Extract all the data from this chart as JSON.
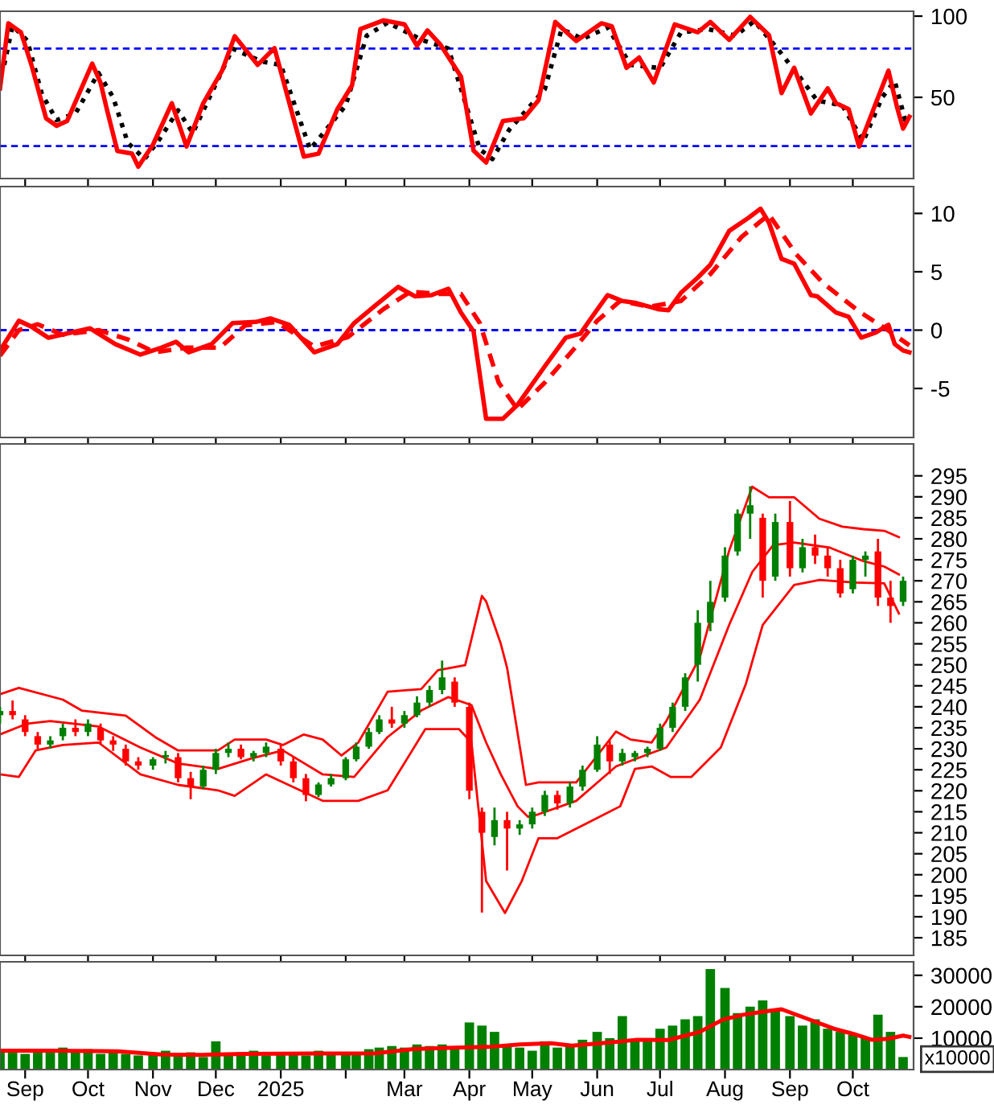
{
  "chart_data": [
    {
      "type": "line",
      "xlim": [
        "2024-08-20",
        "2025-10-30"
      ],
      "ylim": [
        0,
        103
      ],
      "yticks": [
        50,
        100
      ],
      "tick_labels": "y",
      "grid": false,
      "xticks": [
        {
          "value": "2024-09-01",
          "label": null
        },
        {
          "value": "2024-10-01",
          "label": null
        },
        {
          "value": "2024-11-01",
          "label": null
        },
        {
          "value": "2024-12-01",
          "label": null
        },
        {
          "value": "2025-01-01",
          "label": null
        },
        {
          "value": "2025-02-01",
          "label": null
        },
        {
          "value": "2025-03-01",
          "label": null
        },
        {
          "value": "2025-04-01",
          "label": null
        },
        {
          "value": "2025-05-01",
          "label": null
        },
        {
          "value": "2025-06-01",
          "label": null
        },
        {
          "value": "2025-07-01",
          "label": null
        },
        {
          "value": "2025-08-01",
          "label": null
        },
        {
          "value": "2025-09-01",
          "label": null
        },
        {
          "value": "2025-10-01",
          "label": null
        }
      ],
      "ref_lines": [
        {
          "axis": "y",
          "value": 80,
          "color": "#0000ff",
          "line_style": "dashed"
        },
        {
          "axis": "y",
          "value": 20,
          "color": "#0000ff",
          "line_style": "dashed"
        }
      ],
      "series": [
        {
          "color": "#000000",
          "line_style": "dotted",
          "x": [
            "2024-08-22",
            "2024-08-26",
            "2024-09-02",
            "2024-09-09",
            "2024-09-16",
            "2024-09-25",
            "2024-10-06",
            "2024-10-13",
            "2024-10-20",
            "2024-10-28",
            "2024-11-04",
            "2024-11-13",
            "2024-11-20",
            "2024-11-28",
            "2024-12-09",
            "2024-12-23",
            "2025-01-01",
            "2025-01-15",
            "2025-02-01",
            "2025-02-11",
            "2025-02-21",
            "2025-03-10",
            "2025-03-22",
            "2025-04-06",
            "2025-04-12",
            "2025-04-20",
            "2025-05-07",
            "2025-05-15",
            "2025-05-25",
            "2025-06-06",
            "2025-06-17",
            "2025-07-01",
            "2025-07-11",
            "2025-07-24",
            "2025-08-06",
            "2025-08-15",
            "2025-08-26",
            "2025-09-06",
            "2025-09-14",
            "2025-09-26",
            "2025-10-06",
            "2025-10-15",
            "2025-10-21",
            "2025-10-26",
            "2025-10-28"
          ],
          "values": [
            70,
            94,
            85,
            52,
            36,
            40,
            65,
            50,
            22,
            12,
            24,
            42,
            28,
            50,
            80,
            72,
            70,
            18,
            45,
            88,
            96,
            85,
            80,
            18,
            12,
            30,
            55,
            92,
            86,
            93,
            70,
            68,
            90,
            92,
            88,
            97,
            80,
            62,
            48,
            45,
            23,
            50,
            60,
            36,
            36
          ]
        },
        {
          "color": "#ff0000",
          "line_style": "solid",
          "x": [
            "2024-08-20",
            "2024-08-24",
            "2024-08-30",
            "2024-09-04",
            "2024-09-11",
            "2024-09-16",
            "2024-09-21",
            "2024-10-03",
            "2024-10-07",
            "2024-10-10",
            "2024-10-15",
            "2024-10-22",
            "2024-10-25",
            "2024-11-01",
            "2024-11-10",
            "2024-11-17",
            "2024-11-25",
            "2024-12-04",
            "2024-12-10",
            "2024-12-21",
            "2024-12-29",
            "2025-01-12",
            "2025-01-19",
            "2025-01-28",
            "2025-02-04",
            "2025-02-08",
            "2025-02-19",
            "2025-03-01",
            "2025-03-07",
            "2025-03-12",
            "2025-03-18",
            "2025-03-28",
            "2025-04-03",
            "2025-04-09",
            "2025-04-17",
            "2025-04-27",
            "2025-05-04",
            "2025-05-12",
            "2025-05-22",
            "2025-06-03",
            "2025-06-08",
            "2025-06-15",
            "2025-06-21",
            "2025-06-28",
            "2025-07-08",
            "2025-07-19",
            "2025-07-25",
            "2025-08-03",
            "2025-08-13",
            "2025-08-22",
            "2025-08-28",
            "2025-09-03",
            "2025-09-11",
            "2025-09-19",
            "2025-09-23",
            "2025-09-29",
            "2025-10-04",
            "2025-10-12",
            "2025-10-18",
            "2025-10-22",
            "2025-10-25",
            "2025-10-28"
          ],
          "values": [
            55.5,
            95.6,
            90,
            70,
            37,
            32.5,
            35.4,
            70.8,
            59,
            42.7,
            17,
            15.3,
            7.3,
            20.8,
            46.4,
            19.7,
            46.4,
            66.4,
            87.6,
            70,
            80.3,
            13.5,
            15.3,
            42.7,
            57.3,
            92,
            97.4,
            95,
            81.8,
            91.2,
            82.8,
            62.8,
            17.2,
            9.9,
            35.4,
            37.2,
            48.2,
            96.4,
            84.7,
            95.6,
            93.8,
            68.2,
            74.5,
            59.1,
            94.9,
            90.1,
            96.4,
            85.4,
            99.5,
            88.3,
            52.6,
            68.2,
            40.1,
            55.5,
            46.4,
            42.7,
            19.7,
            46.4,
            66.4,
            44.5,
            30.7,
            38
          ]
        }
      ]
    },
    {
      "type": "line",
      "xlim": [
        "2024-08-20",
        "2025-10-30"
      ],
      "ylim": [
        -9.2,
        12.3
      ],
      "yticks": [
        -5,
        0,
        5,
        10
      ],
      "tick_labels": "y",
      "grid": false,
      "xticks": [
        {
          "value": "2024-09-01",
          "label": null
        },
        {
          "value": "2024-10-01",
          "label": null
        },
        {
          "value": "2024-11-01",
          "label": null
        },
        {
          "value": "2024-12-01",
          "label": null
        },
        {
          "value": "2025-01-01",
          "label": null
        },
        {
          "value": "2025-02-01",
          "label": null
        },
        {
          "value": "2025-03-01",
          "label": null
        },
        {
          "value": "2025-04-01",
          "label": null
        },
        {
          "value": "2025-05-01",
          "label": null
        },
        {
          "value": "2025-06-01",
          "label": null
        },
        {
          "value": "2025-07-01",
          "label": null
        },
        {
          "value": "2025-08-01",
          "label": null
        },
        {
          "value": "2025-09-01",
          "label": null
        },
        {
          "value": "2025-10-01",
          "label": null
        }
      ],
      "ref_lines": [
        {
          "axis": "y",
          "value": 0,
          "color": "#0000ff",
          "line_style": "dashed"
        }
      ],
      "series": [
        {
          "color": "#ff0000",
          "line_style": "dashed",
          "x": [
            "2024-08-20",
            "2024-08-29",
            "2024-09-07",
            "2024-09-19",
            "2024-10-06",
            "2024-10-20",
            "2024-11-02",
            "2024-11-17",
            "2024-12-03",
            "2024-12-15",
            "2024-12-30",
            "2025-01-17",
            "2025-02-02",
            "2025-02-19",
            "2025-03-04",
            "2025-03-17",
            "2025-03-28",
            "2025-04-06",
            "2025-04-15",
            "2025-04-24",
            "2025-05-07",
            "2025-05-21",
            "2025-06-01",
            "2025-06-12",
            "2025-06-26",
            "2025-07-11",
            "2025-07-25",
            "2025-08-09",
            "2025-08-22",
            "2025-09-04",
            "2025-09-17",
            "2025-10-04",
            "2025-10-16",
            "2025-10-28"
          ],
          "values": [
            -2.2,
            0,
            0.5,
            -0.4,
            0,
            -0.8,
            -1.9,
            -1.5,
            -1.5,
            0.4,
            0.7,
            -1.4,
            -0.6,
            1.8,
            3.3,
            3.1,
            3.1,
            0.6,
            -4.5,
            -6.8,
            -4.5,
            -1.6,
            0.8,
            2.5,
            2.0,
            2.5,
            4.8,
            8,
            9.9,
            6.5,
            4,
            1.6,
            0.2,
            -1.3
          ]
        },
        {
          "color": "#ff0000",
          "line_style": "solid",
          "x": [
            "2024-08-20",
            "2024-08-29",
            "2024-09-04",
            "2024-09-12",
            "2024-10-02",
            "2024-10-14",
            "2024-10-26",
            "2024-11-05",
            "2024-11-12",
            "2024-11-18",
            "2024-11-29",
            "2024-12-09",
            "2024-12-20",
            "2024-12-27",
            "2025-01-05",
            "2025-01-17",
            "2025-01-28",
            "2025-02-05",
            "2025-02-15",
            "2025-02-26",
            "2025-03-06",
            "2025-03-14",
            "2025-03-22",
            "2025-03-28",
            "2025-04-03",
            "2025-04-09",
            "2025-04-17",
            "2025-04-24",
            "2025-05-07",
            "2025-05-17",
            "2025-05-24",
            "2025-05-29",
            "2025-06-06",
            "2025-06-13",
            "2025-06-19",
            "2025-06-30",
            "2025-07-05",
            "2025-07-11",
            "2025-07-19",
            "2025-07-25",
            "2025-08-03",
            "2025-08-12",
            "2025-08-18",
            "2025-08-22",
            "2025-08-28",
            "2025-09-03",
            "2025-09-11",
            "2025-09-14",
            "2025-09-23",
            "2025-09-29",
            "2025-10-05",
            "2025-10-12",
            "2025-10-18",
            "2025-10-21",
            "2025-10-25",
            "2025-10-28"
          ],
          "values": [
            -1.75,
            0.8,
            0.3,
            -0.65,
            0.15,
            -1.2,
            -2.1,
            -1.5,
            -1.0,
            -1.9,
            -1.2,
            0.6,
            0.7,
            1.0,
            0.45,
            -1.9,
            -1.2,
            0.6,
            2.1,
            3.7,
            2.9,
            3.0,
            3.55,
            1.5,
            -0.1,
            -7.6,
            -7.6,
            -6.4,
            -3.1,
            -0.65,
            -0.3,
            1.0,
            3.0,
            2.5,
            2.35,
            1.8,
            1.7,
            3.2,
            4.5,
            5.6,
            8.5,
            9.6,
            10.4,
            9.2,
            6.1,
            5.7,
            3.0,
            2.9,
            1.5,
            1.15,
            -0.65,
            -0.2,
            0.45,
            -1.2,
            -1.75,
            -1.9
          ]
        }
      ]
    },
    {
      "type": "candlestick",
      "xlim": [
        "2024-08-20",
        "2025-10-30"
      ],
      "ylim": [
        180.8,
        302.6
      ],
      "yticks": [
        185,
        190,
        195,
        200,
        205,
        210,
        215,
        220,
        225,
        230,
        235,
        240,
        245,
        250,
        255,
        260,
        265,
        270,
        275,
        280,
        285,
        290,
        295
      ],
      "tick_labels": "y",
      "grid": false,
      "xticks": [
        {
          "value": "2024-09-01",
          "label": null
        },
        {
          "value": "2024-10-01",
          "label": null
        },
        {
          "value": "2024-11-01",
          "label": null
        },
        {
          "value": "2024-12-01",
          "label": null
        },
        {
          "value": "2025-01-01",
          "label": null
        },
        {
          "value": "2025-02-01",
          "label": null
        },
        {
          "value": "2025-03-01",
          "label": null
        },
        {
          "value": "2025-04-01",
          "label": null
        },
        {
          "value": "2025-05-01",
          "label": null
        },
        {
          "value": "2025-06-01",
          "label": null
        },
        {
          "value": "2025-07-01",
          "label": null
        },
        {
          "value": "2025-08-01",
          "label": null
        },
        {
          "value": "2025-09-01",
          "label": null
        },
        {
          "value": "2025-10-01",
          "label": null
        }
      ],
      "x": [
        "2024-08-20",
        "2024-08-26",
        "2024-09-01",
        "2024-09-07",
        "2024-09-13",
        "2024-09-19",
        "2024-09-25",
        "2024-10-01",
        "2024-10-07",
        "2024-10-13",
        "2024-10-19",
        "2024-10-25",
        "2024-11-01",
        "2024-11-07",
        "2024-11-13",
        "2024-11-19",
        "2024-11-25",
        "2024-12-01",
        "2024-12-07",
        "2024-12-13",
        "2024-12-19",
        "2024-12-25",
        "2025-01-01",
        "2025-01-07",
        "2025-01-13",
        "2025-01-19",
        "2025-01-25",
        "2025-02-01",
        "2025-02-06",
        "2025-02-12",
        "2025-02-17",
        "2025-02-23",
        "2025-03-01",
        "2025-03-07",
        "2025-03-13",
        "2025-03-19",
        "2025-03-25",
        "2025-04-01",
        "2025-04-07",
        "2025-04-13",
        "2025-04-19",
        "2025-04-25",
        "2025-05-01",
        "2025-05-07",
        "2025-05-13",
        "2025-05-19",
        "2025-05-25",
        "2025-06-01",
        "2025-06-07",
        "2025-06-13",
        "2025-06-19",
        "2025-06-25",
        "2025-07-01",
        "2025-07-07",
        "2025-07-13",
        "2025-07-19",
        "2025-07-25",
        "2025-08-01",
        "2025-08-07",
        "2025-08-13",
        "2025-08-19",
        "2025-08-25",
        "2025-09-01",
        "2025-09-07",
        "2025-09-13",
        "2025-09-19",
        "2025-09-25",
        "2025-10-01",
        "2025-10-07",
        "2025-10-13",
        "2025-10-19",
        "2025-10-25"
      ],
      "ohlc": [
        [
          238,
          240,
          236,
          239
        ],
        [
          239,
          241.5,
          237,
          238
        ],
        [
          237,
          238,
          233,
          234
        ],
        [
          233,
          234,
          230,
          231
        ],
        [
          231,
          233,
          230,
          232
        ],
        [
          233,
          236,
          232,
          235
        ],
        [
          235,
          237,
          233,
          234
        ],
        [
          234,
          237,
          233,
          236
        ],
        [
          235,
          236,
          231,
          232
        ],
        [
          232,
          233,
          229.5,
          231
        ],
        [
          230,
          231,
          226,
          227
        ],
        [
          227,
          228,
          225,
          226
        ],
        [
          226,
          228,
          225,
          227.5
        ],
        [
          228,
          229.5,
          226.5,
          228.5
        ],
        [
          228,
          229,
          222,
          223
        ],
        [
          223,
          224.5,
          218,
          221
        ],
        [
          221,
          226,
          220.5,
          225
        ],
        [
          225,
          230,
          224,
          229
        ],
        [
          229,
          231.5,
          228,
          230
        ],
        [
          230,
          231,
          227.5,
          228
        ],
        [
          228,
          229.5,
          227,
          229
        ],
        [
          229,
          231.5,
          228,
          230.5
        ],
        [
          230,
          231,
          226,
          227
        ],
        [
          227,
          228,
          222,
          223
        ],
        [
          223,
          224,
          217.5,
          219
        ],
        [
          219,
          222,
          218.5,
          221.5
        ],
        [
          221.5,
          224,
          221,
          223
        ],
        [
          223,
          228,
          222.5,
          227.5
        ],
        [
          227.5,
          231.5,
          227,
          230.5
        ],
        [
          230.5,
          235,
          230,
          234
        ],
        [
          234,
          238,
          233.5,
          237
        ],
        [
          237,
          240,
          235,
          236
        ],
        [
          236,
          239,
          235,
          238
        ],
        [
          238,
          242.5,
          237.5,
          241
        ],
        [
          241,
          245,
          240,
          244
        ],
        [
          244,
          251,
          243,
          247
        ],
        [
          246,
          247,
          240,
          241
        ],
        [
          240,
          241,
          218,
          220
        ],
        [
          215,
          216,
          191,
          210
        ],
        [
          209,
          216,
          207,
          213
        ],
        [
          213,
          215,
          201,
          211
        ],
        [
          211,
          213,
          209.5,
          212
        ],
        [
          212,
          216,
          211,
          215
        ],
        [
          215,
          220,
          214,
          219
        ],
        [
          219,
          220,
          215.5,
          217
        ],
        [
          217,
          222,
          216,
          221
        ],
        [
          221,
          226,
          220,
          225
        ],
        [
          225,
          233,
          224.5,
          231
        ],
        [
          231,
          232,
          224,
          227
        ],
        [
          227,
          230,
          226,
          229
        ],
        [
          228,
          229.5,
          227,
          229
        ],
        [
          229,
          230.5,
          228,
          230
        ],
        [
          230,
          236,
          229.5,
          235
        ],
        [
          235,
          241,
          234,
          240
        ],
        [
          240,
          248,
          239,
          247
        ],
        [
          250,
          263,
          246,
          260
        ],
        [
          260,
          270,
          258,
          265
        ],
        [
          266,
          278,
          265,
          276
        ],
        [
          277,
          287,
          276,
          286
        ],
        [
          286,
          292.5,
          280,
          288
        ],
        [
          285,
          286,
          266,
          270
        ],
        [
          271,
          286,
          270,
          284
        ],
        [
          284,
          289,
          271,
          273
        ],
        [
          273,
          280,
          272,
          278
        ],
        [
          278,
          281,
          274,
          276
        ],
        [
          276,
          278,
          271,
          273
        ],
        [
          273,
          275,
          266,
          267
        ],
        [
          268,
          276,
          267,
          275
        ],
        [
          275,
          277,
          271,
          276
        ],
        [
          277,
          280,
          264,
          266
        ],
        [
          266,
          270,
          260,
          264
        ],
        [
          265,
          271,
          264,
          270
        ]
      ],
      "colors": [
        "#008000",
        "#ff0000",
        "#ff0000",
        "#ff0000",
        "#008000",
        "#008000",
        "#ff0000",
        "#008000",
        "#ff0000",
        "#ff0000",
        "#ff0000",
        "#ff0000",
        "#008000",
        "#008000",
        "#ff0000",
        "#ff0000",
        "#008000",
        "#008000",
        "#008000",
        "#ff0000",
        "#008000",
        "#008000",
        "#ff0000",
        "#ff0000",
        "#ff0000",
        "#008000",
        "#008000",
        "#008000",
        "#008000",
        "#008000",
        "#008000",
        "#ff0000",
        "#008000",
        "#008000",
        "#008000",
        "#008000",
        "#ff0000",
        "#ff0000",
        "#ff0000",
        "#008000",
        "#ff0000",
        "#008000",
        "#008000",
        "#008000",
        "#ff0000",
        "#008000",
        "#008000",
        "#008000",
        "#ff0000",
        "#008000",
        "#008000",
        "#008000",
        "#008000",
        "#008000",
        "#008000",
        "#008000",
        "#008000",
        "#008000",
        "#008000",
        "#008000",
        "#ff0000",
        "#008000",
        "#ff0000",
        "#008000",
        "#ff0000",
        "#ff0000",
        "#ff0000",
        "#008000",
        "#008000",
        "#ff0000",
        "#ff0000",
        "#008000"
      ],
      "series": [
        {
          "type": "line",
          "color": "#ff0000",
          "line_style": "solid",
          "x": [
            "2024-08-20",
            "2024-08-29",
            "2024-09-19",
            "2024-09-28",
            "2024-10-19",
            "2024-11-02",
            "2024-11-13",
            "2024-12-02",
            "2024-12-10",
            "2024-12-25",
            "2025-01-02",
            "2025-01-12",
            "2025-01-21",
            "2025-01-30",
            "2025-02-07",
            "2025-02-21",
            "2025-03-09",
            "2025-03-17",
            "2025-03-30",
            "2025-04-07",
            "2025-04-09",
            "2025-04-16",
            "2025-04-19",
            "2025-04-28",
            "2025-05-04",
            "2025-05-22",
            "2025-06-10",
            "2025-06-17",
            "2025-06-27",
            "2025-07-04",
            "2025-07-20",
            "2025-08-03",
            "2025-08-14",
            "2025-08-22",
            "2025-09-03",
            "2025-09-15",
            "2025-09-26",
            "2025-10-06",
            "2025-10-16",
            "2025-10-23"
          ],
          "values": [
            243,
            244.5,
            241.7,
            239.1,
            237.9,
            232.8,
            229.6,
            229.6,
            232.2,
            232.2,
            230.9,
            233.4,
            232.2,
            228.4,
            231.5,
            243.6,
            244.2,
            248.7,
            249.9,
            266.4,
            265.1,
            255,
            249.3,
            221.4,
            222,
            222,
            234.1,
            232.2,
            231.5,
            236.6,
            251.8,
            277.2,
            292.4,
            289.9,
            289.9,
            284.8,
            282.9,
            282.3,
            281.9,
            280.4
          ]
        },
        {
          "type": "line",
          "color": "#ff0000",
          "line_style": "solid",
          "x": [
            "2024-08-20",
            "2024-09-02",
            "2024-09-13",
            "2024-10-06",
            "2024-10-26",
            "2024-11-13",
            "2024-12-02",
            "2024-12-18",
            "2025-01-02",
            "2025-01-21",
            "2025-02-05",
            "2025-02-21",
            "2025-03-09",
            "2025-03-22",
            "2025-04-02",
            "2025-04-09",
            "2025-04-16",
            "2025-04-24",
            "2025-04-29",
            "2025-05-04",
            "2025-05-22",
            "2025-06-10",
            "2025-06-27",
            "2025-07-04",
            "2025-07-20",
            "2025-08-03",
            "2025-08-14",
            "2025-08-24",
            "2025-09-03",
            "2025-09-20",
            "2025-10-06",
            "2025-10-16",
            "2025-10-23"
          ],
          "values": [
            233.4,
            236,
            236.6,
            235.3,
            230.3,
            226.5,
            225.2,
            227.7,
            229.6,
            223.9,
            223.3,
            232.8,
            239.1,
            242.3,
            240.4,
            231.5,
            223.9,
            216.3,
            213.8,
            214.4,
            217.6,
            225.8,
            229,
            230.3,
            241.7,
            259.5,
            272.1,
            278.5,
            279.1,
            277.9,
            274.7,
            273.4,
            271.5
          ]
        },
        {
          "type": "line",
          "color": "#ff0000",
          "line_style": "solid",
          "x": [
            "2024-08-20",
            "2024-08-29",
            "2024-09-06",
            "2024-09-19",
            "2024-10-06",
            "2024-10-26",
            "2024-11-13",
            "2024-12-02",
            "2024-12-10",
            "2024-12-25",
            "2025-01-21",
            "2025-02-07",
            "2025-02-21",
            "2025-03-11",
            "2025-03-27",
            "2025-04-02",
            "2025-04-09",
            "2025-04-18",
            "2025-04-26",
            "2025-05-04",
            "2025-05-13",
            "2025-05-28",
            "2025-06-12",
            "2025-06-19",
            "2025-06-27",
            "2025-07-06",
            "2025-07-16",
            "2025-07-30",
            "2025-08-11",
            "2025-08-19",
            "2025-09-03",
            "2025-09-15",
            "2025-10-02",
            "2025-10-16",
            "2025-10-23"
          ],
          "values": [
            223.9,
            223.3,
            229.6,
            230.9,
            231.5,
            223.9,
            221.4,
            220.1,
            218.8,
            223.9,
            217.6,
            217.6,
            220.1,
            234.7,
            234.7,
            231.5,
            198.5,
            190.9,
            198.5,
            208.7,
            208.7,
            212.5,
            216.3,
            225.2,
            225.8,
            223.3,
            223.3,
            230.3,
            245.5,
            259.5,
            269,
            270.2,
            269.6,
            269.4,
            262.2
          ]
        }
      ]
    },
    {
      "type": "bar",
      "xlim": [
        "2024-08-20",
        "2025-10-30"
      ],
      "ylim": [
        0,
        34300
      ],
      "yticks": [
        10000,
        20000,
        30000
      ],
      "grid": false,
      "ylabel": "x10000",
      "xticks": [
        {
          "value": "2024-09-01",
          "label": "Sep"
        },
        {
          "value": "2024-10-01",
          "label": "Oct"
        },
        {
          "value": "2024-11-01",
          "label": "Nov"
        },
        {
          "value": "2024-12-01",
          "label": "Dec"
        },
        {
          "value": "2025-01-01",
          "label": "2025"
        },
        {
          "value": "2025-02-01",
          "label": null
        },
        {
          "value": "2025-03-01",
          "label": "Mar"
        },
        {
          "value": "2025-04-01",
          "label": "Apr"
        },
        {
          "value": "2025-05-01",
          "label": "May"
        },
        {
          "value": "2025-06-01",
          "label": "Jun"
        },
        {
          "value": "2025-07-01",
          "label": "Jul"
        },
        {
          "value": "2025-08-01",
          "label": "Aug"
        },
        {
          "value": "2025-09-01",
          "label": "Sep"
        },
        {
          "value": "2025-10-01",
          "label": "Oct"
        }
      ],
      "series": [
        {
          "type": "bar",
          "color": "#008000",
          "x": [
            "2024-08-20",
            "2024-08-26",
            "2024-09-01",
            "2024-09-07",
            "2024-09-13",
            "2024-09-19",
            "2024-09-25",
            "2024-10-01",
            "2024-10-07",
            "2024-10-13",
            "2024-10-19",
            "2024-10-25",
            "2024-11-01",
            "2024-11-07",
            "2024-11-13",
            "2024-11-19",
            "2024-11-25",
            "2024-12-01",
            "2024-12-07",
            "2024-12-13",
            "2024-12-19",
            "2024-12-25",
            "2025-01-01",
            "2025-01-07",
            "2025-01-13",
            "2025-01-19",
            "2025-01-25",
            "2025-02-01",
            "2025-02-06",
            "2025-02-12",
            "2025-02-17",
            "2025-02-23",
            "2025-03-01",
            "2025-03-07",
            "2025-03-13",
            "2025-03-19",
            "2025-03-25",
            "2025-04-01",
            "2025-04-07",
            "2025-04-13",
            "2025-04-19",
            "2025-04-25",
            "2025-05-01",
            "2025-05-07",
            "2025-05-13",
            "2025-05-19",
            "2025-05-25",
            "2025-06-01",
            "2025-06-07",
            "2025-06-13",
            "2025-06-19",
            "2025-06-25",
            "2025-07-01",
            "2025-07-07",
            "2025-07-13",
            "2025-07-19",
            "2025-07-25",
            "2025-08-01",
            "2025-08-07",
            "2025-08-13",
            "2025-08-19",
            "2025-08-25",
            "2025-09-01",
            "2025-09-07",
            "2025-09-13",
            "2025-09-19",
            "2025-09-25",
            "2025-10-01",
            "2025-10-07",
            "2025-10-13",
            "2025-10-19",
            "2025-10-25"
          ],
          "values": [
            6000,
            5500,
            5000,
            6000,
            5500,
            7000,
            6000,
            6500,
            5000,
            5500,
            5000,
            4500,
            5000,
            6000,
            4500,
            5500,
            4000,
            9000,
            5000,
            5500,
            6000,
            4500,
            5500,
            5000,
            4500,
            6000,
            5000,
            5500,
            5000,
            6500,
            7000,
            7500,
            7000,
            8000,
            7500,
            8000,
            6500,
            15000,
            14000,
            12000,
            8000,
            7000,
            6000,
            9000,
            7000,
            8000,
            9500,
            12000,
            10000,
            17000,
            9000,
            10000,
            13000,
            14000,
            16000,
            17000,
            32000,
            26000,
            18000,
            20000,
            22000,
            19000,
            17000,
            14000,
            16000,
            13000,
            12000,
            11000,
            10000,
            17500,
            12000,
            4000
          ]
        },
        {
          "type": "line",
          "color": "#ff0000",
          "line_style": "solid",
          "x": [
            "2024-08-20",
            "2024-09-15",
            "2024-10-15",
            "2024-11-05",
            "2024-11-25",
            "2024-12-15",
            "2025-01-15",
            "2025-02-15",
            "2025-03-05",
            "2025-03-25",
            "2025-04-10",
            "2025-04-25",
            "2025-05-10",
            "2025-05-20",
            "2025-06-05",
            "2025-06-20",
            "2025-07-05",
            "2025-07-20",
            "2025-07-31",
            "2025-08-10",
            "2025-08-20",
            "2025-08-28",
            "2025-09-10",
            "2025-09-22",
            "2025-10-01",
            "2025-10-10",
            "2025-10-18",
            "2025-10-25",
            "2025-10-28"
          ],
          "values": [
            6000,
            6000,
            5800,
            4800,
            4700,
            5000,
            5100,
            5200,
            6500,
            7000,
            7200,
            8000,
            8400,
            7600,
            8500,
            9500,
            9400,
            12000,
            15900,
            17500,
            18500,
            19200,
            16000,
            13000,
            11400,
            9500,
            9800,
            10800,
            10400
          ]
        }
      ]
    }
  ]
}
